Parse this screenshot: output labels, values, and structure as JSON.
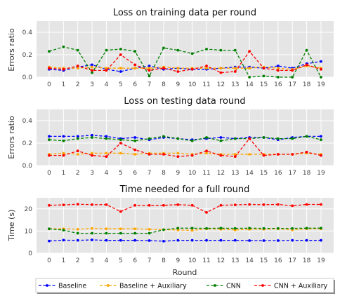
{
  "chart_data": [
    {
      "type": "line",
      "title": "Loss on training data per round",
      "xlabel": "",
      "ylabel": "Errors ratio",
      "ylim": [
        0,
        0.5
      ],
      "yticks": [
        "0.0",
        "0.2",
        "0.4"
      ],
      "grid": true,
      "x": [
        0,
        1,
        2,
        3,
        4,
        5,
        6,
        7,
        8,
        9,
        10,
        11,
        12,
        13,
        14,
        15,
        16,
        17,
        18,
        19
      ],
      "series": [
        {
          "name": "Baseline",
          "values": [
            0.07,
            0.06,
            0.09,
            0.11,
            0.07,
            0.05,
            0.08,
            0.1,
            0.07,
            0.08,
            0.07,
            0.07,
            0.08,
            0.09,
            0.09,
            0.08,
            0.1,
            0.08,
            0.12,
            0.14
          ]
        },
        {
          "name": "Baseline + Auxiliary",
          "values": [
            0.09,
            0.08,
            0.08,
            0.09,
            0.08,
            0.08,
            0.08,
            0.08,
            0.09,
            0.08,
            0.08,
            0.08,
            0.08,
            0.08,
            0.08,
            0.09,
            0.08,
            0.07,
            0.1,
            0.08
          ]
        },
        {
          "name": "CNN",
          "values": [
            0.23,
            0.27,
            0.24,
            0.04,
            0.24,
            0.25,
            0.23,
            0.01,
            0.26,
            0.24,
            0.21,
            0.25,
            0.24,
            0.24,
            0.0,
            0.01,
            0.0,
            0.0,
            0.24,
            0.0
          ]
        },
        {
          "name": "CNN + Auxiliary",
          "values": [
            0.08,
            0.07,
            0.1,
            0.06,
            0.06,
            0.2,
            0.11,
            0.06,
            0.08,
            0.05,
            0.07,
            0.1,
            0.04,
            0.05,
            0.23,
            0.08,
            0.06,
            0.06,
            0.11,
            0.07
          ]
        }
      ]
    },
    {
      "type": "line",
      "title": "Loss on testing data round",
      "xlabel": "",
      "ylabel": "Errors ratio",
      "ylim": [
        0,
        0.5
      ],
      "yticks": [
        "0.0",
        "0.2",
        "0.4"
      ],
      "grid": true,
      "x": [
        0,
        1,
        2,
        3,
        4,
        5,
        6,
        7,
        8,
        9,
        10,
        11,
        12,
        13,
        14,
        15,
        16,
        17,
        18,
        19
      ],
      "series": [
        {
          "name": "Baseline",
          "values": [
            0.26,
            0.26,
            0.26,
            0.27,
            0.26,
            0.24,
            0.25,
            0.23,
            0.25,
            0.24,
            0.23,
            0.24,
            0.25,
            0.24,
            0.25,
            0.25,
            0.23,
            0.25,
            0.26,
            0.26
          ]
        },
        {
          "name": "Baseline + Auxiliary",
          "values": [
            0.1,
            0.11,
            0.1,
            0.11,
            0.11,
            0.11,
            0.1,
            0.11,
            0.11,
            0.11,
            0.1,
            0.11,
            0.1,
            0.1,
            0.1,
            0.1,
            0.1,
            0.1,
            0.11,
            0.1
          ]
        },
        {
          "name": "CNN",
          "values": [
            0.23,
            0.22,
            0.24,
            0.25,
            0.24,
            0.23,
            0.22,
            0.24,
            0.26,
            0.24,
            0.22,
            0.25,
            0.22,
            0.24,
            0.24,
            0.25,
            0.24,
            0.24,
            0.26,
            0.23
          ]
        },
        {
          "name": "CNN + Auxiliary",
          "values": [
            0.09,
            0.09,
            0.13,
            0.09,
            0.08,
            0.2,
            0.14,
            0.1,
            0.1,
            0.08,
            0.09,
            0.13,
            0.09,
            0.08,
            0.24,
            0.09,
            0.1,
            0.1,
            0.12,
            0.09
          ]
        }
      ]
    },
    {
      "type": "line",
      "title": "Time needed for a full round",
      "xlabel": "Round",
      "ylabel": "Time (s)",
      "ylim": [
        0,
        25
      ],
      "yticks": [
        "0",
        "10",
        "20"
      ],
      "grid": true,
      "x": [
        0,
        1,
        2,
        3,
        4,
        5,
        6,
        7,
        8,
        9,
        10,
        11,
        12,
        13,
        14,
        15,
        16,
        17,
        18,
        19
      ],
      "series": [
        {
          "name": "Baseline",
          "values": [
            5.5,
            5.9,
            5.8,
            6.0,
            5.8,
            5.8,
            5.8,
            5.7,
            5.4,
            5.8,
            5.8,
            5.8,
            5.8,
            5.8,
            5.7,
            5.7,
            5.7,
            5.8,
            5.8,
            5.8
          ]
        },
        {
          "name": "Baseline + Auxiliary",
          "values": [
            11.0,
            11.0,
            10.8,
            11.2,
            11.0,
            11.0,
            11.0,
            10.8,
            10.6,
            10.5,
            10.3,
            11.0,
            10.8,
            10.5,
            10.8,
            10.8,
            11.0,
            10.5,
            11.0,
            11.0
          ]
        },
        {
          "name": "CNN",
          "values": [
            11.0,
            10.4,
            9.0,
            9.0,
            9.0,
            9.0,
            9.0,
            9.0,
            10.6,
            11.3,
            11.3,
            11.2,
            11.3,
            11.2,
            11.3,
            11.2,
            11.2,
            11.2,
            11.3,
            11.3
          ]
        },
        {
          "name": "CNN + Auxiliary",
          "values": [
            21.6,
            21.8,
            22.1,
            21.9,
            21.9,
            18.8,
            21.6,
            21.6,
            21.6,
            21.9,
            21.6,
            18.4,
            21.6,
            21.8,
            22.0,
            21.9,
            22.0,
            21.4,
            22.0,
            22.0
          ]
        }
      ]
    }
  ],
  "legend": {
    "placement": "bottom",
    "entries": [
      {
        "label": "Baseline",
        "color": "#0000ff"
      },
      {
        "label": "Baseline + Auxiliary",
        "color": "#ffa500"
      },
      {
        "label": "CNN",
        "color": "#008000"
      },
      {
        "label": "CNN + Auxiliary",
        "color": "#ff0000"
      }
    ]
  },
  "colors": {
    "plot_background": "#e5e5e5",
    "grid": "#ffffff"
  }
}
